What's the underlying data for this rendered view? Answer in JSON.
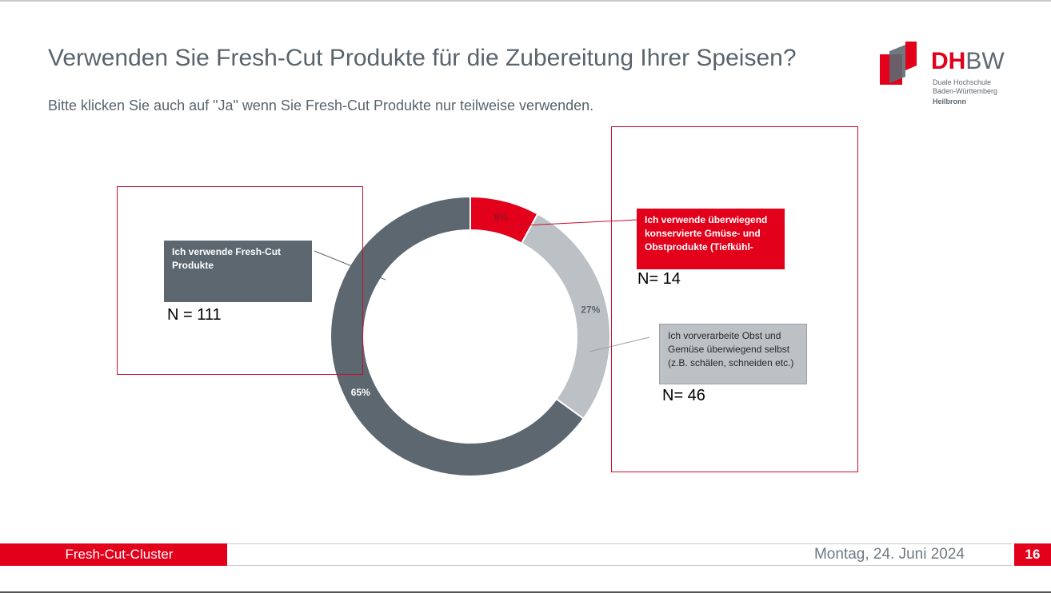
{
  "header": {
    "title": "Verwenden Sie Fresh-Cut Produkte für die Zubereitung Ihrer Speisen?",
    "subtitle": "Bitte klicken Sie auch auf \"Ja\" wenn Sie Fresh-Cut Produkte nur teilweise verwenden."
  },
  "logo": {
    "dh": "DH",
    "bw": "BW",
    "line1": "Duale Hochschule",
    "line2": "Baden-Württemberg",
    "location": "Heilbronn"
  },
  "callouts": {
    "fresh_cut": {
      "label": "Ich verwende Fresh-Cut Produkte",
      "n": "N = 111"
    },
    "canned": {
      "label": "Ich verwende überwiegend konservierte Gmüse- und Obstprodukte (Tiefkühl-",
      "n": "N= 14"
    },
    "self": {
      "label": "Ich vorverarbeite Obst und Gemüse überwiegend selbst (z.B. schälen, schneiden etc.)",
      "n": "N= 46"
    }
  },
  "colors": {
    "red": "#e2001a",
    "dark_gray": "#5c6770",
    "light_gray": "#bcc1c5",
    "frame": "#c8102e"
  },
  "chart_data": {
    "type": "pie",
    "variant": "donut",
    "slices": [
      {
        "label": "Ich verwende überwiegend konservierte Gmüse- und Obstprodukte (Tiefkühl-",
        "value": 8,
        "value_label": "8%",
        "color": "#e2001a"
      },
      {
        "label": "Ich vorverarbeite Obst und Gemüse überwiegend selbst (z.B. schälen, schneiden etc.)",
        "value": 27,
        "value_label": "27%",
        "color": "#bcc1c5"
      },
      {
        "label": "Ich verwende Fresh-Cut Produkte",
        "value": 65,
        "value_label": "65%",
        "color": "#5c6770"
      }
    ]
  },
  "footer": {
    "left": "Fresh-Cut-Cluster",
    "date": "Montag, 24. Juni 2024",
    "page": "16"
  }
}
